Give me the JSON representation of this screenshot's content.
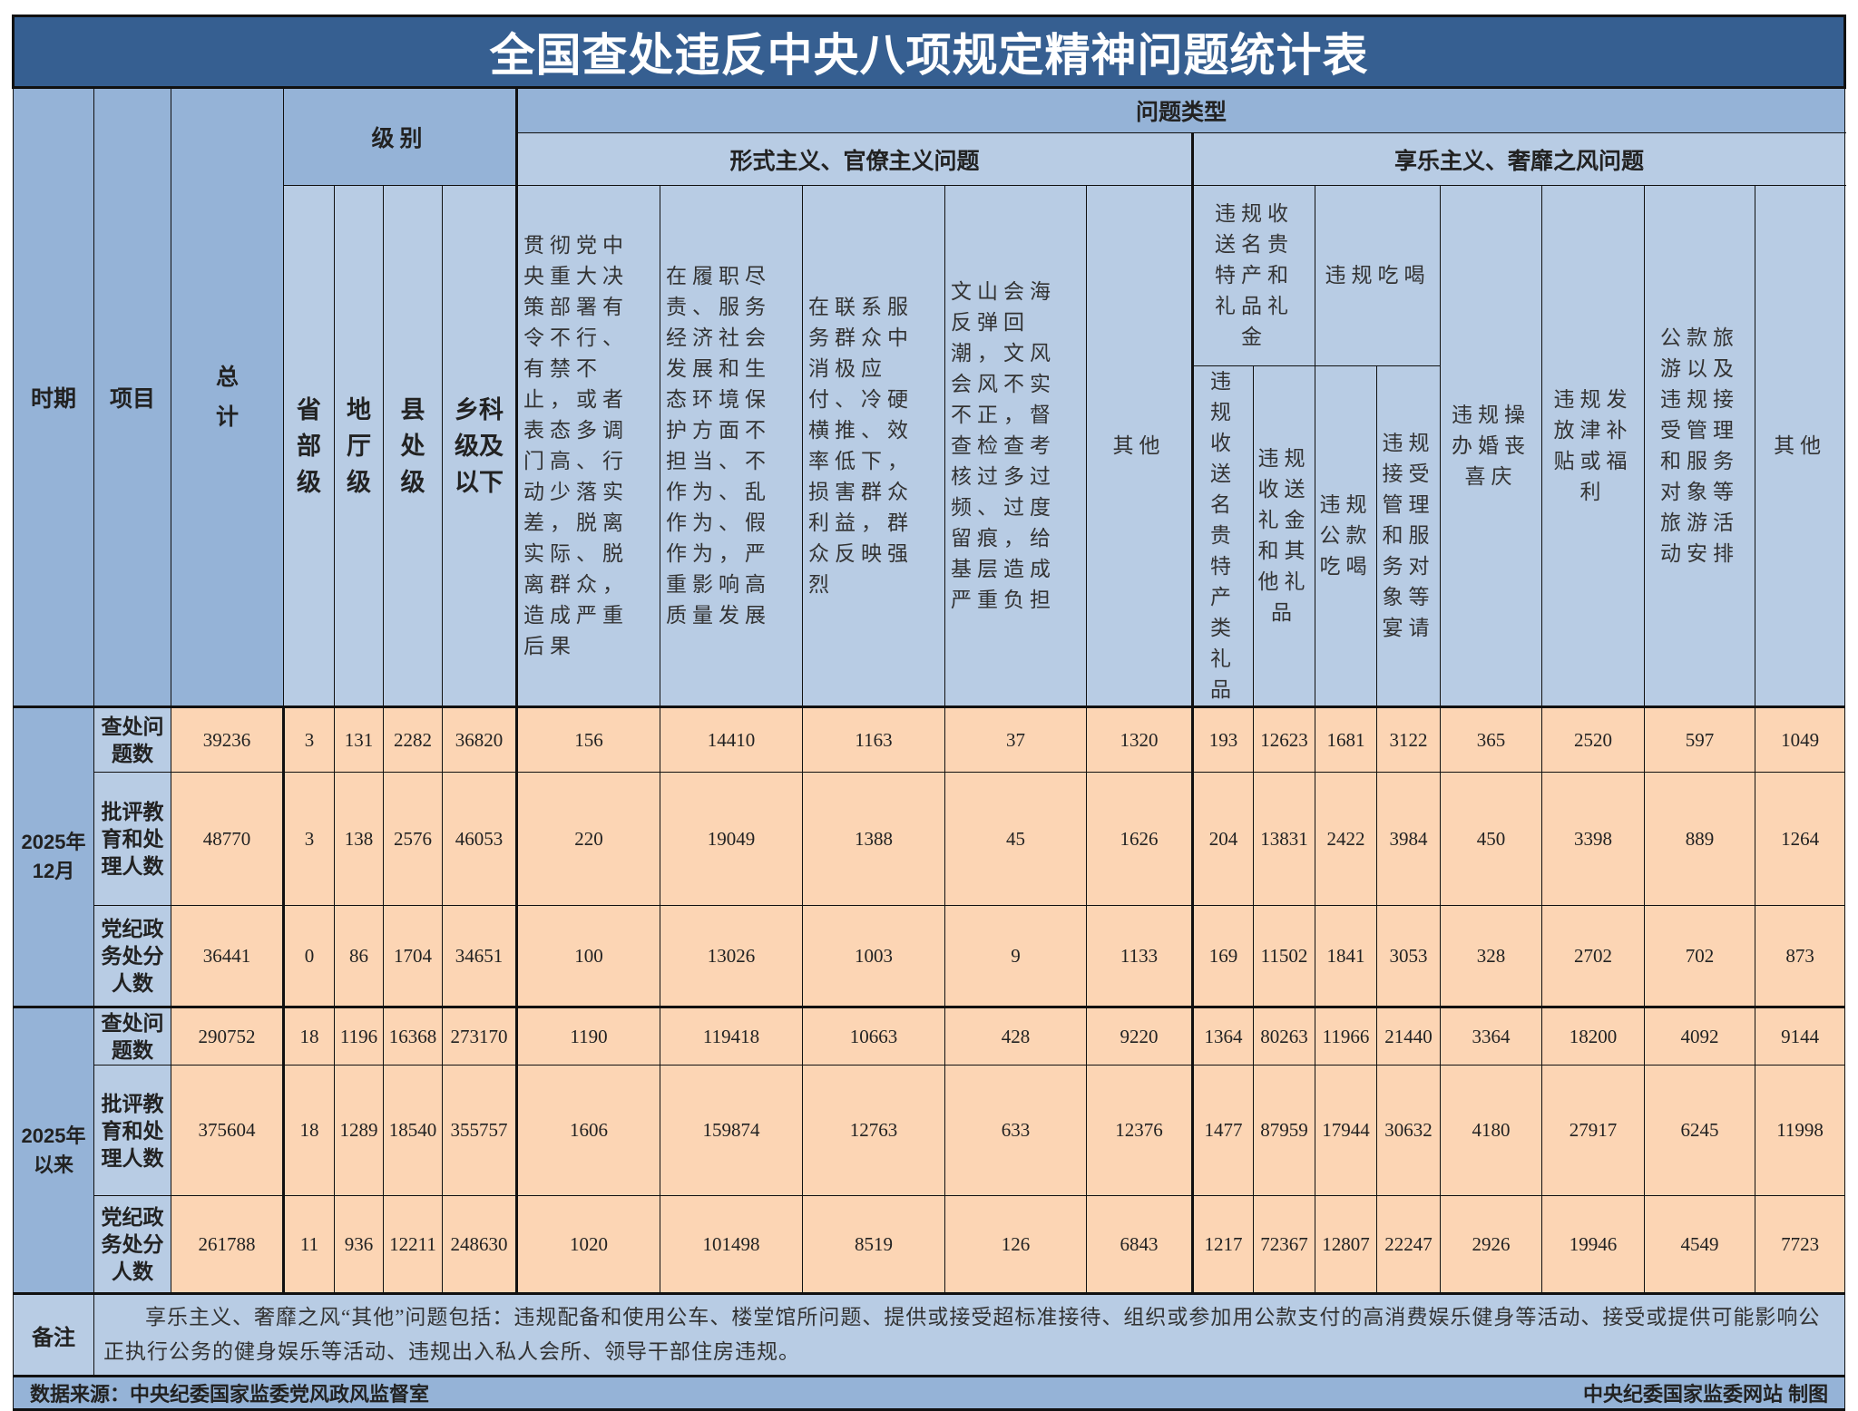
{
  "title": "全国查处违反中央八项规定精神问题统计表",
  "header": {
    "period": "时期",
    "item": "项目",
    "total": "总计",
    "level": "级别",
    "problem_type": "问题类型",
    "formalism": "形式主义、官僚主义问题",
    "hedonism": "享乐主义、奢靡之风问题",
    "levels": [
      "省部级",
      "地厅级",
      "县处级",
      "乡科级及以下"
    ],
    "formalism_cols": [
      "贯彻党中央重大决策部署有令不行、有禁不止，或者表态多调门高、行动少落实差，脱离实际、脱离群众，造成严重后果",
      "在履职尽责、服务经济社会发展和生态环境保护方面不担当、不作为、乱作为、假作为，严重影响高质量发展",
      "在联系服务群众中消极应付、冷硬横推、效率低下，损害群众利益，群众反映强烈",
      "文山会海反弹回潮，文风会风不实不正，督查检查考核过多过频、过度留痕，给基层造成严重负担",
      "其他"
    ],
    "gift_group": "违规收送名贵特产和礼品礼金",
    "gift_cols": [
      "违规收送名贵特产类礼品",
      "违规收送礼金和其他礼品"
    ],
    "dining_group": "违规吃喝",
    "dining_cols": [
      "违规公款吃喝",
      "违规接受管理和服务对象等宴请"
    ],
    "hedonism_cols": [
      "违规操办婚丧喜庆",
      "违规发放津补贴或福利",
      "公款旅游以及违规接受管理和服务对象等旅游活动安排",
      "其他"
    ]
  },
  "periods": [
    {
      "label": "2025年12月",
      "rows": [
        {
          "item": "查处问题数",
          "values": [
            "39236",
            "3",
            "131",
            "2282",
            "36820",
            "156",
            "14410",
            "1163",
            "37",
            "1320",
            "193",
            "12623",
            "1681",
            "3122",
            "365",
            "2520",
            "597",
            "1049"
          ]
        },
        {
          "item": "批评教育和处理人数",
          "values": [
            "48770",
            "3",
            "138",
            "2576",
            "46053",
            "220",
            "19049",
            "1388",
            "45",
            "1626",
            "204",
            "13831",
            "2422",
            "3984",
            "450",
            "3398",
            "889",
            "1264"
          ]
        },
        {
          "item": "党纪政务处分人数",
          "values": [
            "36441",
            "0",
            "86",
            "1704",
            "34651",
            "100",
            "13026",
            "1003",
            "9",
            "1133",
            "169",
            "11502",
            "1841",
            "3053",
            "328",
            "2702",
            "702",
            "873"
          ]
        }
      ]
    },
    {
      "label": "2025年以来",
      "rows": [
        {
          "item": "查处问题数",
          "values": [
            "290752",
            "18",
            "1196",
            "16368",
            "273170",
            "1190",
            "119418",
            "10663",
            "428",
            "9220",
            "1364",
            "80263",
            "11966",
            "21440",
            "3364",
            "18200",
            "4092",
            "9144"
          ]
        },
        {
          "item": "批评教育和处理人数",
          "values": [
            "375604",
            "18",
            "1289",
            "18540",
            "355757",
            "1606",
            "159874",
            "12763",
            "633",
            "12376",
            "1477",
            "87959",
            "17944",
            "30632",
            "4180",
            "27917",
            "6245",
            "11998"
          ]
        },
        {
          "item": "党纪政务处分人数",
          "values": [
            "261788",
            "11",
            "936",
            "12211",
            "248630",
            "1020",
            "101498",
            "8519",
            "126",
            "6843",
            "1217",
            "72367",
            "12807",
            "22247",
            "2926",
            "19946",
            "4549",
            "7723"
          ]
        }
      ]
    }
  ],
  "remark": {
    "label": "备注",
    "text": "享乐主义、奢靡之风“其他”问题包括：违规配备和使用公车、楼堂馆所问题、提供或接受超标准接待、组织或参加用公款支付的高消费娱乐健身等活动、接受或提供可能影响公正执行公务的健身娱乐等活动、违规出入私人会所、领导干部住房违规。"
  },
  "footer": {
    "source": "数据来源：中央纪委国家监委党风政风监督室",
    "credit": "中央纪委国家监委网站 制图"
  },
  "colors": {
    "title_bg": "#365f91",
    "header_dark": "#95b3d7",
    "header_light": "#b8cce4",
    "data_bg": "#fcd5b4"
  }
}
